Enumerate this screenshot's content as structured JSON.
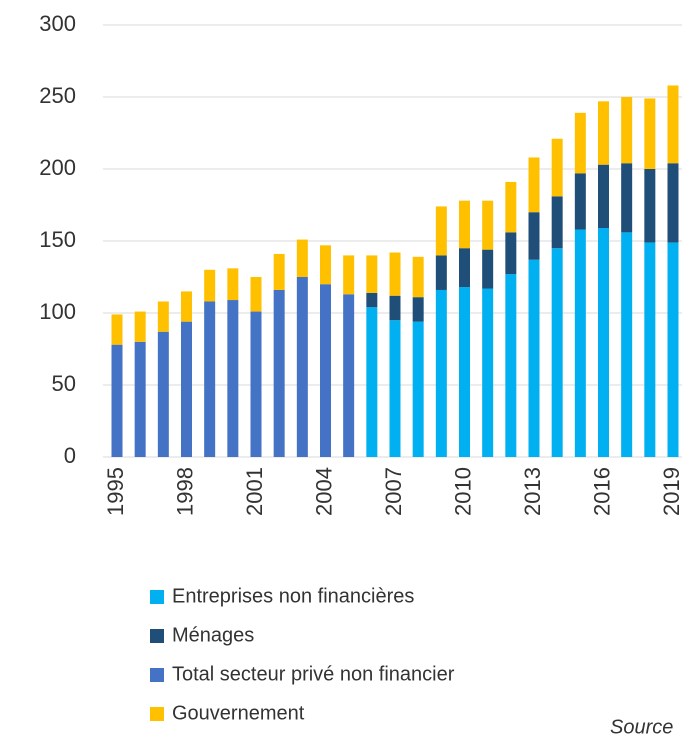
{
  "chart_data": {
    "type": "stacked_bar",
    "categories": [
      "1995",
      null,
      null,
      "1998",
      null,
      null,
      "2001",
      null,
      null,
      "2004",
      null,
      null,
      "2007",
      null,
      null,
      "2010",
      null,
      null,
      "2013",
      null,
      null,
      "2016",
      null,
      null,
      "2019"
    ],
    "series": [
      {
        "name": "Entreprises non financières",
        "color": "#00b0f0",
        "values": [
          null,
          null,
          null,
          null,
          null,
          null,
          null,
          null,
          null,
          null,
          null,
          104,
          95,
          94,
          116,
          118,
          117,
          127,
          137,
          145,
          158,
          159,
          156,
          149,
          149
        ]
      },
      {
        "name": "Ménages",
        "color": "#1f4e79",
        "values": [
          null,
          null,
          null,
          null,
          null,
          null,
          null,
          null,
          null,
          null,
          null,
          10,
          17,
          17,
          24,
          27,
          27,
          29,
          33,
          36,
          39,
          44,
          48,
          51,
          55
        ]
      },
      {
        "name": "Total secteur privé non financier",
        "color": "#4472c4",
        "values": [
          78,
          80,
          87,
          94,
          108,
          109,
          101,
          116,
          125,
          120,
          113,
          null,
          null,
          null,
          null,
          null,
          null,
          null,
          null,
          null,
          null,
          null,
          null,
          null,
          null
        ]
      },
      {
        "name": "Gouvernement",
        "color": "#ffc000",
        "values": [
          21,
          21,
          21,
          21,
          22,
          22,
          24,
          25,
          26,
          27,
          27,
          26,
          30,
          28,
          34,
          33,
          34,
          35,
          38,
          40,
          42,
          44,
          46,
          49,
          54
        ]
      }
    ],
    "ylim": [
      0,
      300
    ],
    "yticks": [
      0,
      50,
      100,
      150,
      200,
      250,
      300
    ],
    "grid": true,
    "source": "Source"
  }
}
